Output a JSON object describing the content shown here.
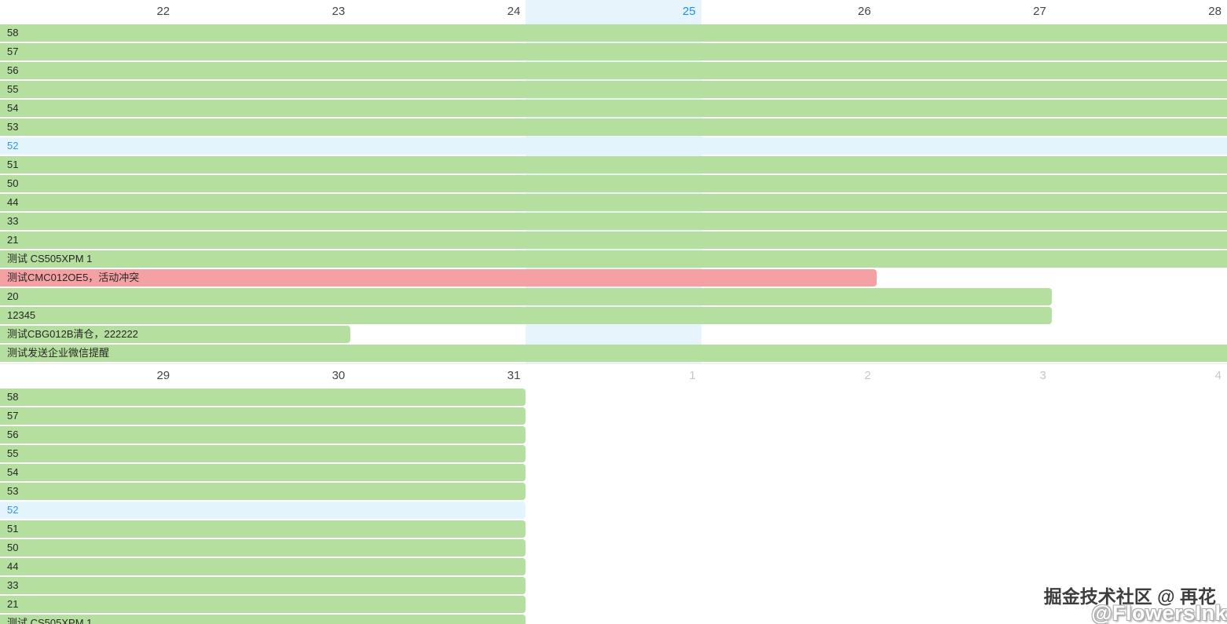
{
  "palette": {
    "green": "#b5df9f",
    "pink": "#f5a1a3",
    "blue_bar": "#e4f4fd",
    "today_col": "#e7f4fc",
    "header_text": "#454545",
    "muted_text": "#c7c7c7",
    "today_text": "#1890f1",
    "bar_text": "#262626",
    "blue_text": "#2e95ee"
  },
  "week1": {
    "days": [
      {
        "label": "22",
        "today": false,
        "muted": false
      },
      {
        "label": "23",
        "today": false,
        "muted": false
      },
      {
        "label": "24",
        "today": false,
        "muted": false
      },
      {
        "label": "25",
        "today": true,
        "muted": false
      },
      {
        "label": "26",
        "today": false,
        "muted": false
      },
      {
        "label": "27",
        "today": false,
        "muted": false
      },
      {
        "label": "28",
        "today": false,
        "muted": false
      }
    ],
    "today_index": 3,
    "rows": [
      {
        "label": "58",
        "days": 7,
        "variant": "green"
      },
      {
        "label": "57",
        "days": 7,
        "variant": "green"
      },
      {
        "label": "56",
        "days": 7,
        "variant": "green"
      },
      {
        "label": "55",
        "days": 7,
        "variant": "green"
      },
      {
        "label": "54",
        "days": 7,
        "variant": "green"
      },
      {
        "label": "53",
        "days": 7,
        "variant": "green"
      },
      {
        "label": "52",
        "days": 7,
        "variant": "blue"
      },
      {
        "label": "51",
        "days": 7,
        "variant": "green"
      },
      {
        "label": "50",
        "days": 7,
        "variant": "green"
      },
      {
        "label": "44",
        "days": 7,
        "variant": "green"
      },
      {
        "label": "33",
        "days": 7,
        "variant": "green"
      },
      {
        "label": "21",
        "days": 7,
        "variant": "green"
      },
      {
        "label": "测试 CS505XPM 1",
        "days": 7,
        "variant": "green"
      },
      {
        "label": "测试CMC012OE5，活动冲突",
        "days": 5,
        "variant": "pink"
      },
      {
        "label": "20",
        "days": 6,
        "variant": "green"
      },
      {
        "label": "12345",
        "days": 6,
        "variant": "green"
      },
      {
        "label": "测试CBG012B清仓，222222",
        "days": 2,
        "variant": "green"
      },
      {
        "label": "测试发送企业微信提醒",
        "days": 7,
        "variant": "green"
      }
    ]
  },
  "week2": {
    "days": [
      {
        "label": "29",
        "today": false,
        "muted": false
      },
      {
        "label": "30",
        "today": false,
        "muted": false
      },
      {
        "label": "31",
        "today": false,
        "muted": false
      },
      {
        "label": "1",
        "today": false,
        "muted": true
      },
      {
        "label": "2",
        "today": false,
        "muted": true
      },
      {
        "label": "3",
        "today": false,
        "muted": true
      },
      {
        "label": "4",
        "today": false,
        "muted": true
      }
    ],
    "today_index": -1,
    "rows": [
      {
        "label": "58",
        "days": 3,
        "variant": "green"
      },
      {
        "label": "57",
        "days": 3,
        "variant": "green"
      },
      {
        "label": "56",
        "days": 3,
        "variant": "green"
      },
      {
        "label": "55",
        "days": 3,
        "variant": "green"
      },
      {
        "label": "54",
        "days": 3,
        "variant": "green"
      },
      {
        "label": "53",
        "days": 3,
        "variant": "green"
      },
      {
        "label": "52",
        "days": 3,
        "variant": "blue"
      },
      {
        "label": "51",
        "days": 3,
        "variant": "green"
      },
      {
        "label": "50",
        "days": 3,
        "variant": "green"
      },
      {
        "label": "44",
        "days": 3,
        "variant": "green"
      },
      {
        "label": "33",
        "days": 3,
        "variant": "green"
      },
      {
        "label": "21",
        "days": 3,
        "variant": "green"
      },
      {
        "label": "测试 CS505XPM 1",
        "days": 3,
        "variant": "green"
      }
    ]
  },
  "watermark": {
    "line1": "掘金技术社区 @ 再花",
    "line2": "@FlowersInk"
  }
}
